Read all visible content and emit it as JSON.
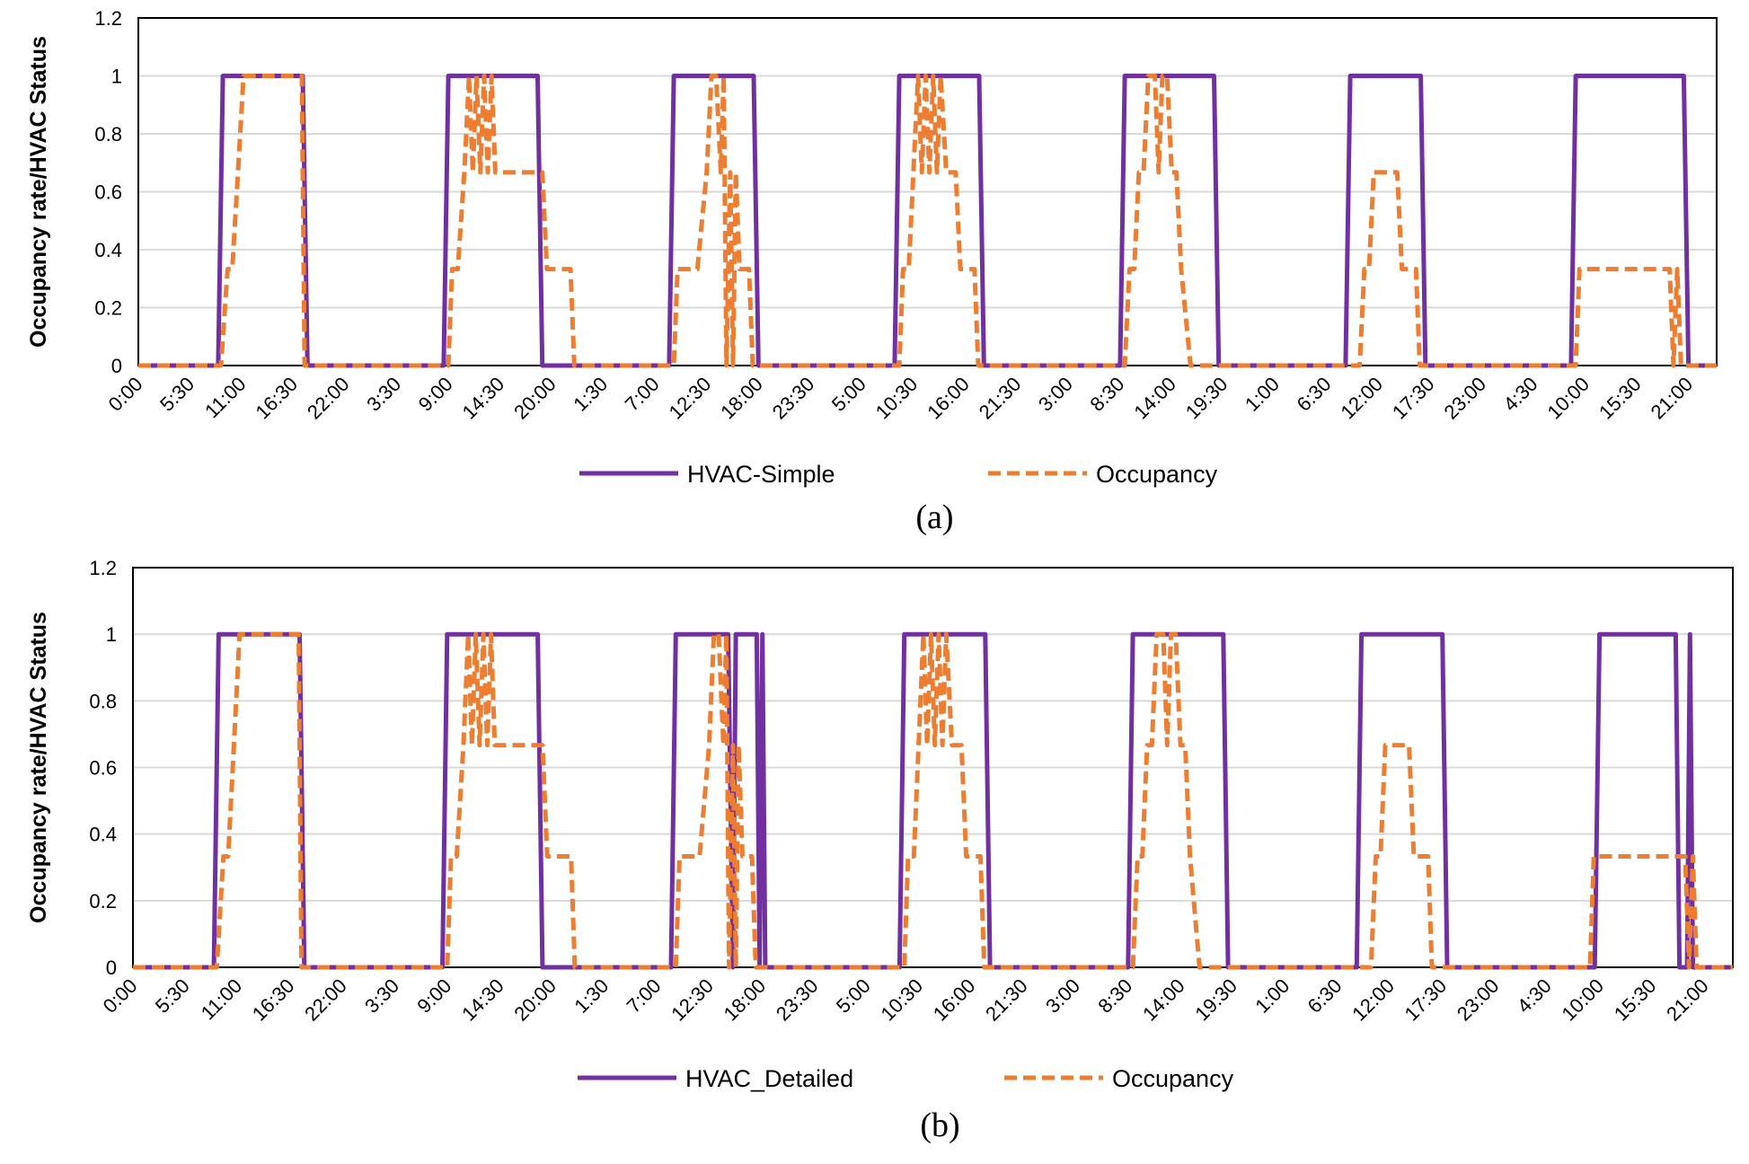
{
  "colors": {
    "hvac": "#7030a0",
    "occupancy": "#ed7d31",
    "grid": "#d9d9d9",
    "axis": "#000000"
  },
  "chart_data": [
    {
      "type": "line",
      "caption": "(a)",
      "ylabel": "Occupancy rate/HVAC Status",
      "xlabel": "",
      "ylim": [
        0,
        1.2
      ],
      "yticks": [
        "0",
        "0.2",
        "0.4",
        "0.6",
        "0.8",
        "1",
        "1.2"
      ],
      "grid": true,
      "legend_position": "bottom",
      "x_tick_labels": [
        "0:00",
        "5:30",
        "11:00",
        "16:30",
        "22:00",
        "3:30",
        "9:00",
        "14:30",
        "20:00",
        "1:30",
        "7:00",
        "12:30",
        "18:00",
        "23:30",
        "5:00",
        "10:30",
        "16:00",
        "21:30",
        "3:00",
        "8:30",
        "14:00",
        "19:30",
        "1:00",
        "6:30",
        "12:00",
        "17:30",
        "23:00",
        "4:30",
        "10:00",
        "15:30",
        "21:00"
      ],
      "x_unit": "hours since start of week",
      "series": [
        {
          "name": "HVAC-Simple",
          "style": "solid",
          "points": [
            [
              0,
              0
            ],
            [
              8.5,
              0
            ],
            [
              9,
              1
            ],
            [
              17.5,
              1
            ],
            [
              18,
              0
            ],
            [
              32.5,
              0
            ],
            [
              33,
              1
            ],
            [
              42.5,
              1
            ],
            [
              43,
              0
            ],
            [
              56.5,
              0
            ],
            [
              57,
              1
            ],
            [
              65.5,
              1
            ],
            [
              66,
              0
            ],
            [
              80.5,
              0
            ],
            [
              81,
              1
            ],
            [
              89.5,
              1
            ],
            [
              90,
              0
            ],
            [
              104.5,
              0
            ],
            [
              105,
              1
            ],
            [
              114.5,
              1
            ],
            [
              115,
              0
            ],
            [
              128.5,
              0
            ],
            [
              129,
              1
            ],
            [
              136.5,
              1
            ],
            [
              137,
              0
            ],
            [
              152.5,
              0
            ],
            [
              153,
              1
            ],
            [
              164.5,
              1
            ],
            [
              165,
              0
            ],
            [
              168,
              0
            ]
          ]
        },
        {
          "name": "Occupancy",
          "style": "dashed",
          "points": [
            [
              0,
              0
            ],
            [
              8.8,
              0
            ],
            [
              9.5,
              0.333
            ],
            [
              10,
              0.333
            ],
            [
              10.6,
              0.667
            ],
            [
              11.2,
              1
            ],
            [
              17.4,
              1
            ],
            [
              17.7,
              0
            ],
            [
              33,
              0
            ],
            [
              33.4,
              0.333
            ],
            [
              34,
              0.333
            ],
            [
              34.7,
              0.667
            ],
            [
              35.2,
              1
            ],
            [
              35.6,
              0.667
            ],
            [
              36,
              1
            ],
            [
              36.4,
              0.667
            ],
            [
              36.8,
              1
            ],
            [
              37.2,
              0.667
            ],
            [
              37.6,
              1
            ],
            [
              38,
              0.667
            ],
            [
              43,
              0.667
            ],
            [
              43.5,
              0.333
            ],
            [
              46,
              0.333
            ],
            [
              46.4,
              0
            ],
            [
              57,
              0
            ],
            [
              57.4,
              0.333
            ],
            [
              59.5,
              0.333
            ],
            [
              60.5,
              0.667
            ],
            [
              61,
              1
            ],
            [
              61.5,
              1
            ],
            [
              62,
              0.667
            ],
            [
              62.3,
              1
            ],
            [
              62.6,
              0
            ],
            [
              63,
              0.667
            ],
            [
              63.3,
              0
            ],
            [
              63.6,
              0.667
            ],
            [
              64,
              0.333
            ],
            [
              65,
              0.333
            ],
            [
              65.4,
              0
            ],
            [
              81,
              0
            ],
            [
              81.4,
              0.333
            ],
            [
              82,
              0.333
            ],
            [
              82.5,
              0.667
            ],
            [
              83,
              1
            ],
            [
              83.4,
              0.667
            ],
            [
              83.8,
              1
            ],
            [
              84.2,
              0.667
            ],
            [
              84.6,
              1
            ],
            [
              85,
              0.667
            ],
            [
              85.4,
              1
            ],
            [
              86,
              0.667
            ],
            [
              87,
              0.667
            ],
            [
              87.5,
              0.333
            ],
            [
              89,
              0.333
            ],
            [
              89.4,
              0
            ],
            [
              105,
              0
            ],
            [
              105.5,
              0.333
            ],
            [
              106,
              0.333
            ],
            [
              106.5,
              0.667
            ],
            [
              107,
              0.667
            ],
            [
              107.5,
              1
            ],
            [
              108.2,
              1
            ],
            [
              108.6,
              0.667
            ],
            [
              109,
              1
            ],
            [
              109.5,
              1
            ],
            [
              110,
              0.667
            ],
            [
              110.5,
              0.667
            ],
            [
              111,
              0.333
            ],
            [
              112,
              0
            ],
            [
              130,
              0
            ],
            [
              130.5,
              0.333
            ],
            [
              131,
              0.333
            ],
            [
              131.5,
              0.667
            ],
            [
              134,
              0.667
            ],
            [
              134.5,
              0.333
            ],
            [
              136,
              0.333
            ],
            [
              136.4,
              0
            ],
            [
              153,
              0
            ],
            [
              153.4,
              0.333
            ],
            [
              163,
              0.333
            ],
            [
              163.4,
              0
            ],
            [
              163.8,
              0.333
            ],
            [
              164.2,
              0
            ],
            [
              168,
              0
            ]
          ]
        }
      ]
    },
    {
      "type": "line",
      "caption": "(b)",
      "ylabel": "Occupancy rate/HVAC Status",
      "xlabel": "",
      "ylim": [
        0,
        1.2
      ],
      "yticks": [
        "0",
        "0.2",
        "0.4",
        "0.6",
        "0.8",
        "1",
        "1.2"
      ],
      "grid": true,
      "legend_position": "bottom",
      "x_tick_labels": [
        "0:00",
        "5:30",
        "11:00",
        "16:30",
        "22:00",
        "3:30",
        "9:00",
        "14:30",
        "20:00",
        "1:30",
        "7:00",
        "12:30",
        "18:00",
        "23:30",
        "5:00",
        "10:30",
        "16:00",
        "21:30",
        "3:00",
        "8:30",
        "14:00",
        "19:30",
        "1:00",
        "6:30",
        "12:00",
        "17:30",
        "23:00",
        "4:30",
        "10:00",
        "15:30",
        "21:00"
      ],
      "x_unit": "hours since start of week",
      "series": [
        {
          "name": "HVAC_Detailed",
          "style": "solid",
          "points": [
            [
              0,
              0
            ],
            [
              8.5,
              0
            ],
            [
              9,
              1
            ],
            [
              17.5,
              1
            ],
            [
              18,
              0
            ],
            [
              32.5,
              0
            ],
            [
              33,
              1
            ],
            [
              42.5,
              1
            ],
            [
              43,
              0
            ],
            [
              56.5,
              0
            ],
            [
              57,
              1
            ],
            [
              62.5,
              1
            ],
            [
              63,
              0
            ],
            [
              63.3,
              1
            ],
            [
              65.5,
              1
            ],
            [
              65.8,
              0
            ],
            [
              66.1,
              1
            ],
            [
              66.4,
              0
            ],
            [
              80.5,
              0
            ],
            [
              81,
              1
            ],
            [
              89.5,
              1
            ],
            [
              90,
              0
            ],
            [
              104.5,
              0
            ],
            [
              105,
              1
            ],
            [
              114.5,
              1
            ],
            [
              115,
              0
            ],
            [
              128.5,
              0
            ],
            [
              129,
              1
            ],
            [
              137.5,
              1
            ],
            [
              138,
              0
            ],
            [
              153.5,
              0
            ],
            [
              154,
              1
            ],
            [
              162,
              1
            ],
            [
              162.4,
              0
            ],
            [
              163.2,
              0
            ],
            [
              163.5,
              1
            ],
            [
              163.8,
              0
            ],
            [
              168,
              0
            ]
          ]
        },
        {
          "name": "Occupancy",
          "style": "dashed",
          "points": [
            [
              0,
              0
            ],
            [
              8.8,
              0
            ],
            [
              9.5,
              0.333
            ],
            [
              10,
              0.333
            ],
            [
              10.6,
              0.667
            ],
            [
              11.2,
              1
            ],
            [
              17.4,
              1
            ],
            [
              17.7,
              0
            ],
            [
              33,
              0
            ],
            [
              33.4,
              0.333
            ],
            [
              34,
              0.333
            ],
            [
              34.7,
              0.667
            ],
            [
              35.2,
              1
            ],
            [
              35.6,
              0.667
            ],
            [
              36,
              1
            ],
            [
              36.4,
              0.667
            ],
            [
              36.8,
              1
            ],
            [
              37.2,
              0.667
            ],
            [
              37.6,
              1
            ],
            [
              38,
              0.667
            ],
            [
              43,
              0.667
            ],
            [
              43.5,
              0.333
            ],
            [
              46,
              0.333
            ],
            [
              46.4,
              0
            ],
            [
              57,
              0
            ],
            [
              57.4,
              0.333
            ],
            [
              59.5,
              0.333
            ],
            [
              60.5,
              0.667
            ],
            [
              61,
              1
            ],
            [
              61.5,
              1
            ],
            [
              62,
              0.667
            ],
            [
              62.3,
              1
            ],
            [
              62.6,
              0
            ],
            [
              63,
              0.667
            ],
            [
              63.3,
              0
            ],
            [
              63.6,
              0.667
            ],
            [
              64,
              0.333
            ],
            [
              65,
              0.333
            ],
            [
              65.4,
              0
            ],
            [
              81,
              0
            ],
            [
              81.4,
              0.333
            ],
            [
              82,
              0.333
            ],
            [
              82.5,
              0.667
            ],
            [
              83,
              1
            ],
            [
              83.4,
              0.667
            ],
            [
              83.8,
              1
            ],
            [
              84.2,
              0.667
            ],
            [
              84.6,
              1
            ],
            [
              85,
              0.667
            ],
            [
              85.4,
              1
            ],
            [
              86,
              0.667
            ],
            [
              87,
              0.667
            ],
            [
              87.5,
              0.333
            ],
            [
              89,
              0.333
            ],
            [
              89.4,
              0
            ],
            [
              105,
              0
            ],
            [
              105.5,
              0.333
            ],
            [
              106,
              0.333
            ],
            [
              106.5,
              0.667
            ],
            [
              107,
              0.667
            ],
            [
              107.5,
              1
            ],
            [
              108.2,
              1
            ],
            [
              108.6,
              0.667
            ],
            [
              109,
              1
            ],
            [
              109.5,
              1
            ],
            [
              110,
              0.667
            ],
            [
              110.5,
              0.667
            ],
            [
              111,
              0.333
            ],
            [
              112,
              0
            ],
            [
              130,
              0
            ],
            [
              130.5,
              0.333
            ],
            [
              131,
              0.333
            ],
            [
              131.5,
              0.667
            ],
            [
              134,
              0.667
            ],
            [
              134.5,
              0.333
            ],
            [
              136,
              0.333
            ],
            [
              136.4,
              0
            ],
            [
              153,
              0
            ],
            [
              153.4,
              0.333
            ],
            [
              163,
              0.333
            ],
            [
              163.4,
              0
            ],
            [
              163.8,
              0.333
            ],
            [
              164.2,
              0
            ],
            [
              168,
              0
            ]
          ]
        }
      ]
    }
  ]
}
